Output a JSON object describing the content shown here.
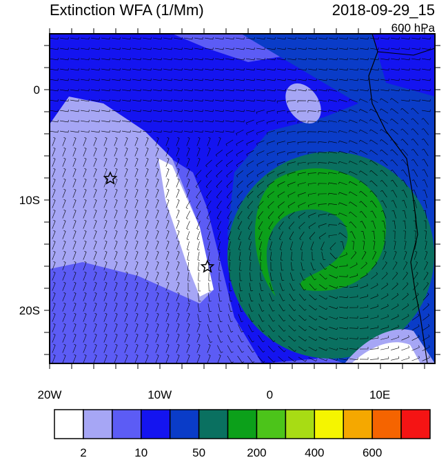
{
  "header": {
    "title": "Extinction WFA (1/Mm)",
    "time": "2018-09-29_15",
    "level": "600 hPa"
  },
  "map": {
    "lat_labels": [
      "0",
      "10S",
      "20S"
    ],
    "lon_labels": [
      "20W",
      "10W",
      "0",
      "10E"
    ]
  },
  "colorbar": {
    "colors": [
      "#ffffff",
      "#a6a6f5",
      "#5c5cf5",
      "#1414f0",
      "#0a3cc8",
      "#0a7060",
      "#0ca01a",
      "#4cc41a",
      "#a8dc14",
      "#f5f500",
      "#f5a800",
      "#f56400",
      "#f51414"
    ],
    "labels": [
      "2",
      "10",
      "50",
      "200",
      "400",
      "600"
    ]
  }
}
